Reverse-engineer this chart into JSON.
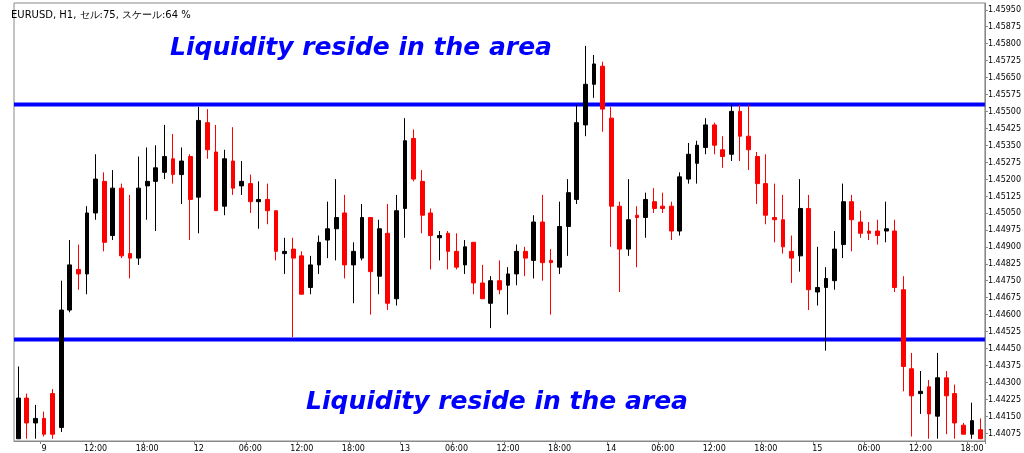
{
  "chart_data": {
    "type": "candlestick",
    "title": "EURUSD, H1, セル:75, スケール:64 %",
    "annotations": [
      "Liquidity reside in the area",
      "Liquidity reside in the area"
    ],
    "categories": [
      null,
      null,
      null,
      "9",
      null,
      null,
      null,
      null,
      null,
      "12:00",
      null,
      null,
      null,
      null,
      null,
      "18:00",
      null,
      null,
      null,
      null,
      null,
      "12",
      null,
      null,
      null,
      null,
      null,
      "06:00",
      null,
      null,
      null,
      null,
      null,
      "12:00",
      null,
      null,
      null,
      null,
      null,
      "18:00",
      null,
      null,
      null,
      null,
      null,
      "13",
      null,
      null,
      null,
      null,
      null,
      "06:00",
      null,
      null,
      null,
      null,
      null,
      "12:00",
      null,
      null,
      null,
      null,
      null,
      "18:00",
      null,
      null,
      null,
      null,
      null,
      "14",
      null,
      null,
      null,
      null,
      null,
      "06:00",
      null,
      null,
      null,
      null,
      null,
      "12:00",
      null,
      null,
      null,
      null,
      null,
      "18:00",
      null,
      null,
      null,
      null,
      null,
      "15",
      null,
      null,
      null,
      null,
      null,
      "06:00",
      null,
      null,
      null,
      null,
      null,
      "12:00",
      null,
      null,
      null,
      null,
      null,
      "18:00",
      null
    ],
    "ohlc": [
      [
        1.4405,
        1.4437,
        1.4405,
        1.4423
      ],
      [
        1.4423,
        1.4425,
        1.4405,
        1.4412
      ],
      [
        1.4412,
        1.442,
        1.4405,
        1.4414
      ],
      [
        1.4414,
        1.4417,
        1.4406,
        1.4407
      ],
      [
        1.4425,
        1.4427,
        1.4405,
        1.4407
      ],
      [
        1.441,
        1.4475,
        1.4408,
        1.4462
      ],
      [
        1.4462,
        1.4493,
        1.4461,
        1.4482
      ],
      [
        1.448,
        1.4491,
        1.4471,
        1.4478
      ],
      [
        1.4478,
        1.4508,
        1.4469,
        1.4505
      ],
      [
        1.4505,
        1.4531,
        1.4502,
        1.452
      ],
      [
        1.4519,
        1.4523,
        1.4488,
        1.4492
      ],
      [
        1.4495,
        1.4524,
        1.4493,
        1.4516
      ],
      [
        1.4516,
        1.4518,
        1.4485,
        1.4486
      ],
      [
        1.4487,
        1.4513,
        1.4476,
        1.4485
      ],
      [
        1.4485,
        1.453,
        1.4482,
        1.4516
      ],
      [
        1.4517,
        1.4534,
        1.4502,
        1.4519
      ],
      [
        1.4519,
        1.4535,
        1.4497,
        1.4525
      ],
      [
        1.4523,
        1.4544,
        1.452,
        1.453
      ],
      [
        1.4529,
        1.454,
        1.4518,
        1.4522
      ],
      [
        1.4522,
        1.4534,
        1.4509,
        1.4528
      ],
      [
        1.453,
        1.4531,
        1.4493,
        1.4511
      ],
      [
        1.4512,
        1.4552,
        1.4496,
        1.4546
      ],
      [
        1.4545,
        1.4551,
        1.4529,
        1.4533
      ],
      [
        1.4532,
        1.4544,
        1.4506,
        1.4506
      ],
      [
        1.4508,
        1.4533,
        1.4504,
        1.4529
      ],
      [
        1.4528,
        1.4543,
        1.4513,
        1.4516
      ],
      [
        1.4517,
        1.4528,
        1.4513,
        1.4519
      ],
      [
        1.4518,
        1.4522,
        1.4505,
        1.451
      ],
      [
        1.451,
        1.4519,
        1.4498,
        1.4511
      ],
      [
        1.4511,
        1.4518,
        1.45,
        1.4506
      ],
      [
        1.4506,
        1.4506,
        1.4484,
        1.4488
      ],
      [
        1.4487,
        1.4494,
        1.4478,
        1.4488
      ],
      [
        1.4489,
        1.4494,
        1.445,
        1.4485
      ],
      [
        1.4486,
        1.4488,
        1.4469,
        1.4469
      ],
      [
        1.4472,
        1.4486,
        1.4469,
        1.4482
      ],
      [
        1.4482,
        1.4495,
        1.4478,
        1.4492
      ],
      [
        1.4493,
        1.451,
        1.4485,
        1.4498
      ],
      [
        1.4498,
        1.452,
        1.4484,
        1.4503
      ],
      [
        1.4505,
        1.4513,
        1.4476,
        1.4482
      ],
      [
        1.4482,
        1.4492,
        1.4465,
        1.4488
      ],
      [
        1.4485,
        1.4509,
        1.4484,
        1.4503
      ],
      [
        1.4503,
        1.4503,
        1.446,
        1.4479
      ],
      [
        1.4477,
        1.4502,
        1.4469,
        1.4498
      ],
      [
        1.4496,
        1.4509,
        1.4462,
        1.4465
      ],
      [
        1.4467,
        1.4513,
        1.4464,
        1.4506
      ],
      [
        1.4507,
        1.4547,
        1.4494,
        1.4537
      ],
      [
        1.4538,
        1.4542,
        1.4519,
        1.452
      ],
      [
        1.4519,
        1.4524,
        1.4496,
        1.4504
      ],
      [
        1.4505,
        1.4507,
        1.448,
        1.4495
      ],
      [
        1.4494,
        1.4497,
        1.4484,
        1.4495
      ],
      [
        1.4496,
        1.4497,
        1.448,
        1.4488
      ],
      [
        1.4488,
        1.4496,
        1.448,
        1.4481
      ],
      [
        1.4482,
        1.4493,
        1.4478,
        1.449
      ],
      [
        1.4492,
        1.4492,
        1.4469,
        1.4474
      ],
      [
        1.4474,
        1.4482,
        1.4467,
        1.4467
      ],
      [
        1.4465,
        1.4477,
        1.4454,
        1.4475
      ],
      [
        1.4475,
        1.4484,
        1.4469,
        1.4471
      ],
      [
        1.4473,
        1.4481,
        1.446,
        1.4478
      ],
      [
        1.4478,
        1.4491,
        1.4473,
        1.4488
      ],
      [
        1.4488,
        1.449,
        1.4477,
        1.4485
      ],
      [
        1.4484,
        1.4504,
        1.4476,
        1.4501
      ],
      [
        1.4501,
        1.4513,
        1.4475,
        1.4483
      ],
      [
        1.4484,
        1.4489,
        1.446,
        1.4483
      ],
      [
        1.4481,
        1.451,
        1.4478,
        1.4499
      ],
      [
        1.4499,
        1.452,
        1.4486,
        1.4514
      ],
      [
        1.4511,
        1.4553,
        1.4509,
        1.4545
      ],
      [
        1.4544,
        1.4579,
        1.4539,
        1.4562
      ],
      [
        1.4562,
        1.4575,
        1.4556,
        1.4571
      ],
      [
        1.457,
        1.4572,
        1.4541,
        1.4551
      ],
      [
        1.4547,
        1.4552,
        1.449,
        1.4508
      ],
      [
        1.4508,
        1.451,
        1.447,
        1.4489
      ],
      [
        1.4489,
        1.452,
        1.4486,
        1.4502
      ],
      [
        1.4504,
        1.4508,
        1.4481,
        1.4503
      ],
      [
        1.4503,
        1.4514,
        1.4494,
        1.4511
      ],
      [
        1.451,
        1.4516,
        1.4505,
        1.4507
      ],
      [
        1.4508,
        1.4514,
        1.4505,
        1.4507
      ],
      [
        1.4508,
        1.451,
        1.4493,
        1.4497
      ],
      [
        1.4497,
        1.4523,
        1.4495,
        1.4521
      ],
      [
        1.452,
        1.4536,
        1.4518,
        1.4531
      ],
      [
        1.4527,
        1.4537,
        1.4518,
        1.4535
      ],
      [
        1.4534,
        1.4547,
        1.4531,
        1.4544
      ],
      [
        1.4544,
        1.4545,
        1.4531,
        1.4535
      ],
      [
        1.4533,
        1.4539,
        1.4525,
        1.453
      ],
      [
        1.4531,
        1.4553,
        1.4528,
        1.455
      ],
      [
        1.455,
        1.4553,
        1.4528,
        1.4539
      ],
      [
        1.4539,
        1.4553,
        1.4524,
        1.4533
      ],
      [
        1.453,
        1.4532,
        1.4509,
        1.4518
      ],
      [
        1.4518,
        1.4531,
        1.45,
        1.4504
      ],
      [
        1.4503,
        1.4518,
        1.4492,
        1.4502
      ],
      [
        1.4502,
        1.4513,
        1.4487,
        1.449
      ],
      [
        1.4488,
        1.4495,
        1.4474,
        1.4485
      ],
      [
        1.4486,
        1.452,
        1.4479,
        1.4507
      ],
      [
        1.4507,
        1.4513,
        1.4462,
        1.4471
      ],
      [
        1.447,
        1.449,
        1.4464,
        1.4472
      ],
      [
        1.4472,
        1.4481,
        1.4444,
        1.4476
      ],
      [
        1.4475,
        1.4497,
        1.4471,
        1.4489
      ],
      [
        1.4491,
        1.4518,
        1.4485,
        1.451
      ],
      [
        1.451,
        1.4513,
        1.4488,
        1.4502
      ],
      [
        1.4501,
        1.4506,
        1.4494,
        1.4496
      ],
      [
        1.4497,
        1.4501,
        1.4493,
        1.4496
      ],
      [
        1.4497,
        1.4502,
        1.4491,
        1.4495
      ],
      [
        1.4497,
        1.451,
        1.4492,
        1.4498
      ],
      [
        1.4497,
        1.4502,
        1.447,
        1.4472
      ],
      [
        1.4471,
        1.4477,
        1.4426,
        1.4437
      ],
      [
        1.4436,
        1.4443,
        1.4406,
        1.4424
      ],
      [
        1.4425,
        1.4435,
        1.4416,
        1.4426
      ],
      [
        1.4428,
        1.4431,
        1.4405,
        1.4416
      ],
      [
        1.4415,
        1.4443,
        1.4405,
        1.4432
      ],
      [
        1.4432,
        1.4435,
        1.4407,
        1.4424
      ],
      [
        1.4425,
        1.4429,
        1.4405,
        1.4412
      ],
      [
        1.4411,
        1.4412,
        1.4407,
        1.4407
      ],
      [
        1.4407,
        1.4421,
        1.4405,
        1.4413
      ],
      [
        1.4409,
        1.4414,
        1.4405,
        1.4405
      ]
    ],
    "colors": [
      "#000000",
      "#ff0000",
      "#000000",
      "#ff0000",
      "#ff0000",
      "#000000",
      "#000000",
      "#ff0000",
      "#000000",
      "#000000",
      "#ff0000",
      "#000000",
      "#ff0000",
      "#ff0000",
      "#000000",
      "#000000",
      "#000000",
      "#000000",
      "#ff0000",
      "#000000",
      "#ff0000",
      "#000000",
      "#ff0000",
      "#ff0000",
      "#000000",
      "#ff0000",
      "#000000",
      "#ff0000",
      "#000000",
      "#ff0000",
      "#ff0000",
      "#000000",
      "#ff0000",
      "#ff0000",
      "#000000",
      "#000000",
      "#000000",
      "#000000",
      "#ff0000",
      "#000000",
      "#000000",
      "#ff0000",
      "#000000",
      "#ff0000",
      "#000000",
      "#000000",
      "#ff0000",
      "#ff0000",
      "#ff0000",
      "#000000",
      "#ff0000",
      "#ff0000",
      "#000000",
      "#ff0000",
      "#ff0000",
      "#000000",
      "#ff0000",
      "#000000",
      "#000000",
      "#ff0000",
      "#000000",
      "#ff0000",
      "#ff0000",
      "#000000",
      "#000000",
      "#000000",
      "#000000",
      "#000000",
      "#ff0000",
      "#ff0000",
      "#ff0000",
      "#000000",
      "#ff0000",
      "#000000",
      "#ff0000",
      "#ff0000",
      "#ff0000",
      "#000000",
      "#000000",
      "#000000",
      "#000000",
      "#ff0000",
      "#ff0000",
      "#000000",
      "#ff0000",
      "#ff0000",
      "#ff0000",
      "#ff0000",
      "#ff0000",
      "#ff0000",
      "#ff0000",
      "#000000",
      "#ff0000",
      "#000000",
      "#000000",
      "#000000",
      "#000000",
      "#ff0000",
      "#ff0000",
      "#ff0000",
      "#ff0000",
      "#000000",
      "#ff0000",
      "#ff0000",
      "#ff0000",
      "#000000",
      "#ff0000",
      "#000000",
      "#ff0000",
      "#ff0000",
      "#ff0000",
      "#000000",
      "#ff0000"
    ],
    "ylim": [
      1.4404,
      1.4598
    ],
    "yticks": [
      {
        "value": 1.44075,
        "label": "1.44075"
      },
      {
        "value": 1.4415,
        "label": "1.44150"
      },
      {
        "value": 1.44225,
        "label": "1.44225"
      },
      {
        "value": 1.443,
        "label": "1.44300"
      },
      {
        "value": 1.44375,
        "label": "1.44375"
      },
      {
        "value": 1.4445,
        "label": "1.44450"
      },
      {
        "value": 1.44525,
        "label": "1.44525"
      },
      {
        "value": 1.446,
        "label": "1.44600"
      },
      {
        "value": 1.44675,
        "label": "1.44675"
      },
      {
        "value": 1.4475,
        "label": "1.44750"
      },
      {
        "value": 1.44825,
        "label": "1.44825"
      },
      {
        "value": 1.449,
        "label": "1.44900"
      },
      {
        "value": 1.44975,
        "label": "1.44975"
      },
      {
        "value": 1.4505,
        "label": "1.45050"
      },
      {
        "value": 1.45125,
        "label": "1.45125"
      },
      {
        "value": 1.452,
        "label": "1.45200"
      },
      {
        "value": 1.45275,
        "label": "1.45275"
      },
      {
        "value": 1.4535,
        "label": "1.45350"
      },
      {
        "value": 1.45425,
        "label": "1.45425"
      },
      {
        "value": 1.455,
        "label": "1.45500"
      },
      {
        "value": 1.45575,
        "label": "1.45575"
      },
      {
        "value": 1.4565,
        "label": "1.45650"
      },
      {
        "value": 1.45725,
        "label": "1.45725"
      },
      {
        "value": 1.458,
        "label": "1.45800"
      },
      {
        "value": 1.45875,
        "label": "1.45875"
      },
      {
        "value": 1.4595,
        "label": "1.45950"
      }
    ],
    "ref_lines": [
      {
        "axis": "y",
        "value": 1.4553,
        "color": "#0000ff"
      },
      {
        "axis": "y",
        "value": 1.4449,
        "color": "#0000ff"
      }
    ]
  }
}
